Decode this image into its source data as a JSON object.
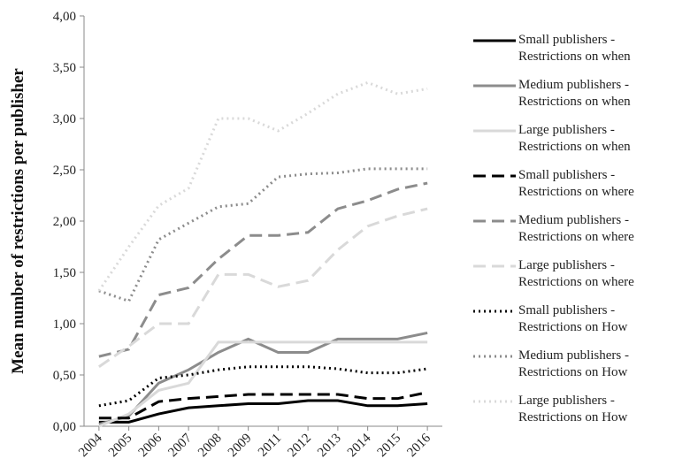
{
  "chart_data": {
    "type": "line",
    "y_label": "Mean number of restrictions per publisher",
    "categories": [
      "2004",
      "2005",
      "2006",
      "2007",
      "2008",
      "2009",
      "2011",
      "2012",
      "2013",
      "2014",
      "2015",
      "2016"
    ],
    "ylim": [
      0,
      4
    ],
    "yticks": [
      {
        "value": 0,
        "label": "0,00"
      },
      {
        "value": 0.5,
        "label": "0,50"
      },
      {
        "value": 1,
        "label": "1,00"
      },
      {
        "value": 1.5,
        "label": "1,50"
      },
      {
        "value": 2,
        "label": "2,00"
      },
      {
        "value": 2.5,
        "label": "2,50"
      },
      {
        "value": 3,
        "label": "3,00"
      },
      {
        "value": 3.5,
        "label": "3,50"
      },
      {
        "value": 4,
        "label": "4,00"
      }
    ],
    "grid": false,
    "legend": "right",
    "series": [
      {
        "name": "Small publishers - Restrictions on when",
        "color": "#000000",
        "dash": "solid",
        "values": [
          0.04,
          0.04,
          0.12,
          0.18,
          0.2,
          0.22,
          0.22,
          0.25,
          0.25,
          0.2,
          0.2,
          0.22
        ]
      },
      {
        "name": "Medium publishers - Restrictions on when",
        "color": "#8c8c8c",
        "dash": "solid",
        "values": [
          0.02,
          0.1,
          0.42,
          0.55,
          0.72,
          0.85,
          0.72,
          0.72,
          0.85,
          0.85,
          0.85,
          0.91
        ]
      },
      {
        "name": "Large publishers - Restrictions on when",
        "color": "#d9d9d9",
        "dash": "solid",
        "values": [
          0.0,
          0.12,
          0.35,
          0.42,
          0.82,
          0.82,
          0.82,
          0.82,
          0.82,
          0.82,
          0.82,
          0.82
        ]
      },
      {
        "name": "Small publishers - Restrictions on where",
        "color": "#000000",
        "dash": "dashed",
        "values": [
          0.08,
          0.08,
          0.24,
          0.27,
          0.29,
          0.31,
          0.31,
          0.31,
          0.31,
          0.27,
          0.27,
          0.33
        ]
      },
      {
        "name": "Medium publishers - Restrictions on where",
        "color": "#8c8c8c",
        "dash": "dashed",
        "values": [
          0.68,
          0.75,
          1.28,
          1.35,
          1.63,
          1.86,
          1.86,
          1.89,
          2.12,
          2.2,
          2.31,
          2.37
        ]
      },
      {
        "name": "Large publishers - Restrictions on where",
        "color": "#d9d9d9",
        "dash": "dashed",
        "values": [
          0.58,
          0.78,
          1.0,
          1.0,
          1.48,
          1.48,
          1.36,
          1.42,
          1.72,
          1.95,
          2.05,
          2.12
        ]
      },
      {
        "name": "Small publishers - Restrictions on How",
        "color": "#000000",
        "dash": "dotted",
        "values": [
          0.2,
          0.25,
          0.47,
          0.5,
          0.55,
          0.58,
          0.58,
          0.58,
          0.56,
          0.52,
          0.52,
          0.56
        ]
      },
      {
        "name": "Medium publishers - Restrictions on How",
        "color": "#8c8c8c",
        "dash": "dotted",
        "values": [
          1.32,
          1.22,
          1.82,
          1.98,
          2.14,
          2.17,
          2.43,
          2.46,
          2.47,
          2.51,
          2.51,
          2.51
        ]
      },
      {
        "name": "Large publishers - Restrictions on How",
        "color": "#d9d9d9",
        "dash": "dotted",
        "values": [
          1.32,
          1.75,
          2.15,
          2.32,
          3.0,
          3.0,
          2.88,
          3.05,
          3.24,
          3.35,
          3.24,
          3.29
        ]
      }
    ]
  }
}
